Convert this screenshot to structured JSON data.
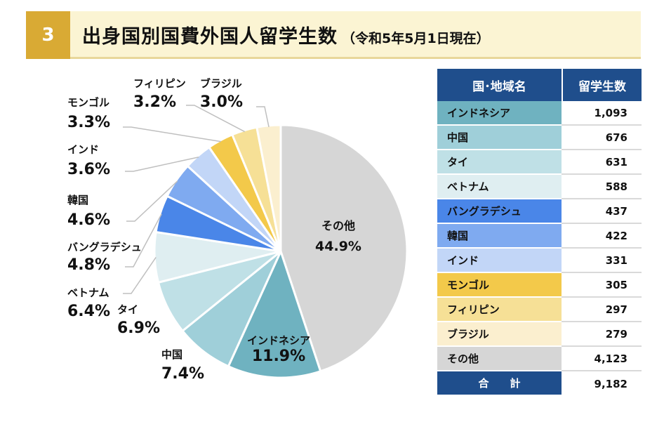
{
  "header": {
    "number": "3",
    "title": "出身国別国費外国人留学生数",
    "subtitle": "（令和5年5月1日現在）"
  },
  "colors": {
    "header_badge": "#d9aa34",
    "header_bg": "#fbf4d3",
    "table_header": "#1f4e8c"
  },
  "table": {
    "col_country": "国･地域名",
    "col_count": "留学生数",
    "rows": [
      {
        "name": "インドネシア",
        "value": "1,093",
        "color": "#6fb2c0"
      },
      {
        "name": "中国",
        "value": "676",
        "color": "#9fcfd9"
      },
      {
        "name": "タイ",
        "value": "631",
        "color": "#bfe0e6"
      },
      {
        "name": "ベトナム",
        "value": "588",
        "color": "#dfeef1"
      },
      {
        "name": "バングラデシュ",
        "value": "437",
        "color": "#4a86e8"
      },
      {
        "name": "韓国",
        "value": "422",
        "color": "#7faaf0"
      },
      {
        "name": "インド",
        "value": "331",
        "color": "#c2d6f7"
      },
      {
        "name": "モンゴル",
        "value": "305",
        "color": "#f3c94a"
      },
      {
        "name": "フィリピン",
        "value": "297",
        "color": "#f6e096"
      },
      {
        "name": "ブラジル",
        "value": "279",
        "color": "#fbefcf"
      },
      {
        "name": "その他",
        "value": "4,123",
        "color": "#d6d6d6"
      }
    ],
    "total_label": "合計",
    "total_value": "9,182"
  },
  "chart_data": {
    "type": "pie",
    "title": "出身国別国費外国人留学生数",
    "slices": [
      {
        "label": "その他",
        "value": 4123,
        "percent": "44.9%",
        "color": "#d6d6d6"
      },
      {
        "label": "インドネシア",
        "value": 1093,
        "percent": "11.9%",
        "color": "#6fb2c0"
      },
      {
        "label": "中国",
        "value": 676,
        "percent": "7.4%",
        "color": "#9fcfd9"
      },
      {
        "label": "タイ",
        "value": 631,
        "percent": "6.9%",
        "color": "#bfe0e6"
      },
      {
        "label": "ベトナム",
        "value": 588,
        "percent": "6.4%",
        "color": "#dfeef1"
      },
      {
        "label": "バングラデシュ",
        "value": 437,
        "percent": "4.8%",
        "color": "#4a86e8"
      },
      {
        "label": "韓国",
        "value": 422,
        "percent": "4.6%",
        "color": "#7faaf0"
      },
      {
        "label": "インド",
        "value": 331,
        "percent": "3.6%",
        "color": "#c2d6f7"
      },
      {
        "label": "モンゴル",
        "value": 305,
        "percent": "3.3%",
        "color": "#f3c94a"
      },
      {
        "label": "フィリピン",
        "value": 297,
        "percent": "3.2%",
        "color": "#f6e096"
      },
      {
        "label": "ブラジル",
        "value": 279,
        "percent": "3.0%",
        "color": "#fbefcf"
      }
    ],
    "total": 9182
  }
}
